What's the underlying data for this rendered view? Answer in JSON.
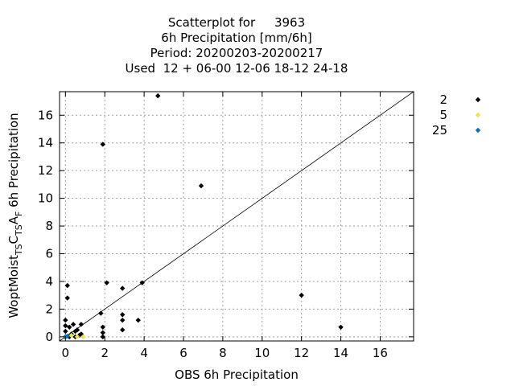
{
  "chart_data": {
    "type": "scatter",
    "title_lines": [
      "Scatterplot for     3963",
      "6h Precipitation [mm/6h]",
      "Period: 20200203-20200217",
      "Used  12 + 06-00 12-06 18-12 24-18"
    ],
    "xlabel": "OBS 6h Precipitation",
    "ylabel_parts": [
      "WoptMoist",
      "TS",
      "C",
      "TS",
      "A",
      "F",
      " 6h Precipitation"
    ],
    "xlim": [
      -0.3,
      17.7
    ],
    "ylim": [
      -0.3,
      17.7
    ],
    "xticks": [
      0,
      2,
      4,
      6,
      8,
      10,
      12,
      14,
      16
    ],
    "yticks": [
      0,
      2,
      4,
      6,
      8,
      10,
      12,
      14,
      16
    ],
    "grid": true,
    "diagonal_line": true,
    "legend_placement": "right",
    "series": [
      {
        "name": "2",
        "color": "#000000",
        "marker": "diamond",
        "points": [
          [
            4.7,
            17.4
          ],
          [
            1.9,
            13.9
          ],
          [
            6.9,
            10.9
          ],
          [
            0.1,
            3.7
          ],
          [
            0.1,
            2.8
          ],
          [
            2.1,
            3.9
          ],
          [
            2.9,
            3.5
          ],
          [
            3.9,
            3.9
          ],
          [
            12.0,
            3.0
          ],
          [
            14.0,
            0.7
          ],
          [
            1.8,
            1.7
          ],
          [
            3.7,
            1.2
          ],
          [
            2.9,
            1.6
          ],
          [
            2.9,
            1.2
          ],
          [
            2.9,
            0.5
          ],
          [
            1.9,
            0.7
          ],
          [
            1.9,
            0.3
          ],
          [
            1.9,
            0.0
          ],
          [
            0.0,
            1.2
          ],
          [
            0.0,
            0.8
          ],
          [
            0.2,
            0.7
          ],
          [
            0.4,
            0.9
          ],
          [
            0.8,
            0.9
          ],
          [
            0.0,
            0.4
          ],
          [
            0.5,
            0.4
          ],
          [
            0.6,
            0.5
          ],
          [
            0.3,
            0.2
          ],
          [
            0.8,
            0.2
          ],
          [
            0.0,
            0.0
          ],
          [
            0.2,
            0.0
          ],
          [
            0.5,
            0.0
          ],
          [
            0.7,
            0.1
          ]
        ]
      },
      {
        "name": "5",
        "color": "#f0e442",
        "marker": "diamond",
        "points": [
          [
            0.6,
            0.0
          ],
          [
            0.9,
            0.0
          ],
          [
            0.3,
            0.1
          ]
        ]
      },
      {
        "name": "25",
        "color": "#0072b2",
        "marker": "diamond",
        "points": [
          [
            0.0,
            0.0
          ],
          [
            0.1,
            0.05
          ]
        ]
      }
    ]
  }
}
